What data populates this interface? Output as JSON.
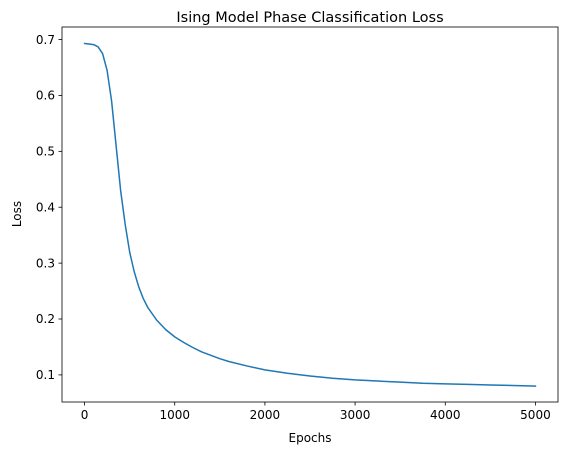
{
  "chart_data": {
    "type": "line",
    "title": "Ising Model Phase Classification Loss",
    "xlabel": "Epochs",
    "ylabel": "Loss",
    "xlim": [
      -250,
      5250
    ],
    "ylim": [
      0.0515,
      0.7225
    ],
    "xticks": [
      0,
      1000,
      2000,
      3000,
      4000,
      5000
    ],
    "yticks": [
      0.1,
      0.2,
      0.3,
      0.4,
      0.5,
      0.6,
      0.7
    ],
    "grid": false,
    "colors": {
      "line": "#1f77b4"
    },
    "series": [
      {
        "x": [
          0,
          50,
          100,
          150,
          200,
          250,
          300,
          350,
          400,
          450,
          500,
          550,
          600,
          650,
          700,
          800,
          900,
          1000,
          1100,
          1200,
          1300,
          1400,
          1500,
          1600,
          1800,
          2000,
          2250,
          2500,
          2750,
          3000,
          3250,
          3500,
          3750,
          4000,
          4250,
          4500,
          4750,
          5000
        ],
        "y": [
          0.693,
          0.692,
          0.691,
          0.687,
          0.675,
          0.645,
          0.59,
          0.51,
          0.43,
          0.37,
          0.32,
          0.285,
          0.258,
          0.237,
          0.221,
          0.198,
          0.181,
          0.168,
          0.158,
          0.149,
          0.141,
          0.135,
          0.129,
          0.124,
          0.116,
          0.109,
          0.103,
          0.098,
          0.094,
          0.091,
          0.089,
          0.087,
          0.085,
          0.084,
          0.083,
          0.082,
          0.081,
          0.08
        ]
      }
    ]
  }
}
